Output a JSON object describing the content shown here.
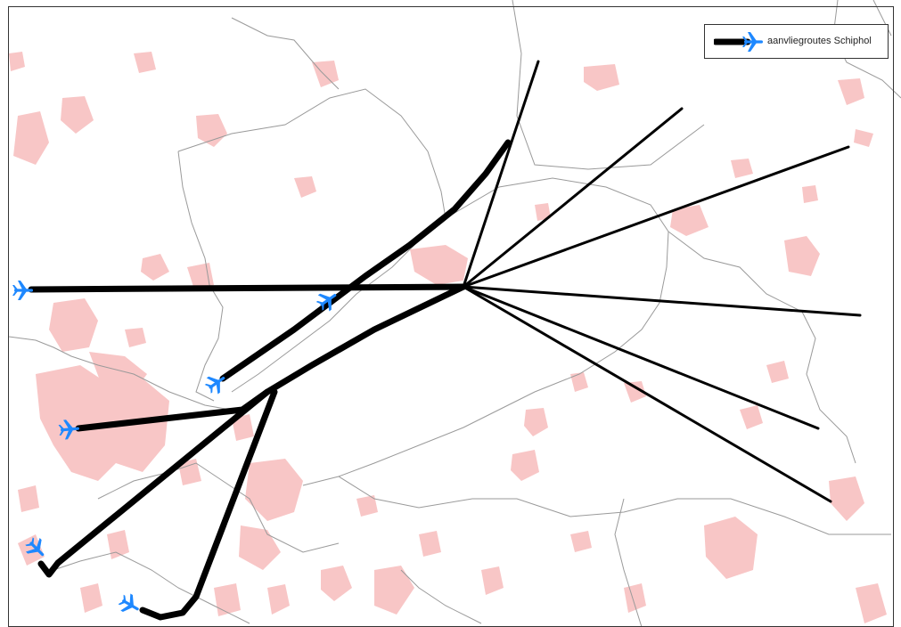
{
  "map": {
    "colors": {
      "background": "#ffffff",
      "urban_area": "#f8c6c6",
      "boundary": "#9a9a9a",
      "route": "#000000",
      "aircraft": "#1e88ff",
      "frame": "#333333"
    },
    "legend": {
      "label": "aanvliegroutes Schiphol",
      "symbol_icon": "aircraft-icon"
    },
    "features": {
      "routes": [
        "approach-route",
        "departure-route"
      ],
      "aircraft_icon": "aircraft-icon",
      "areas": "urban-area"
    }
  }
}
